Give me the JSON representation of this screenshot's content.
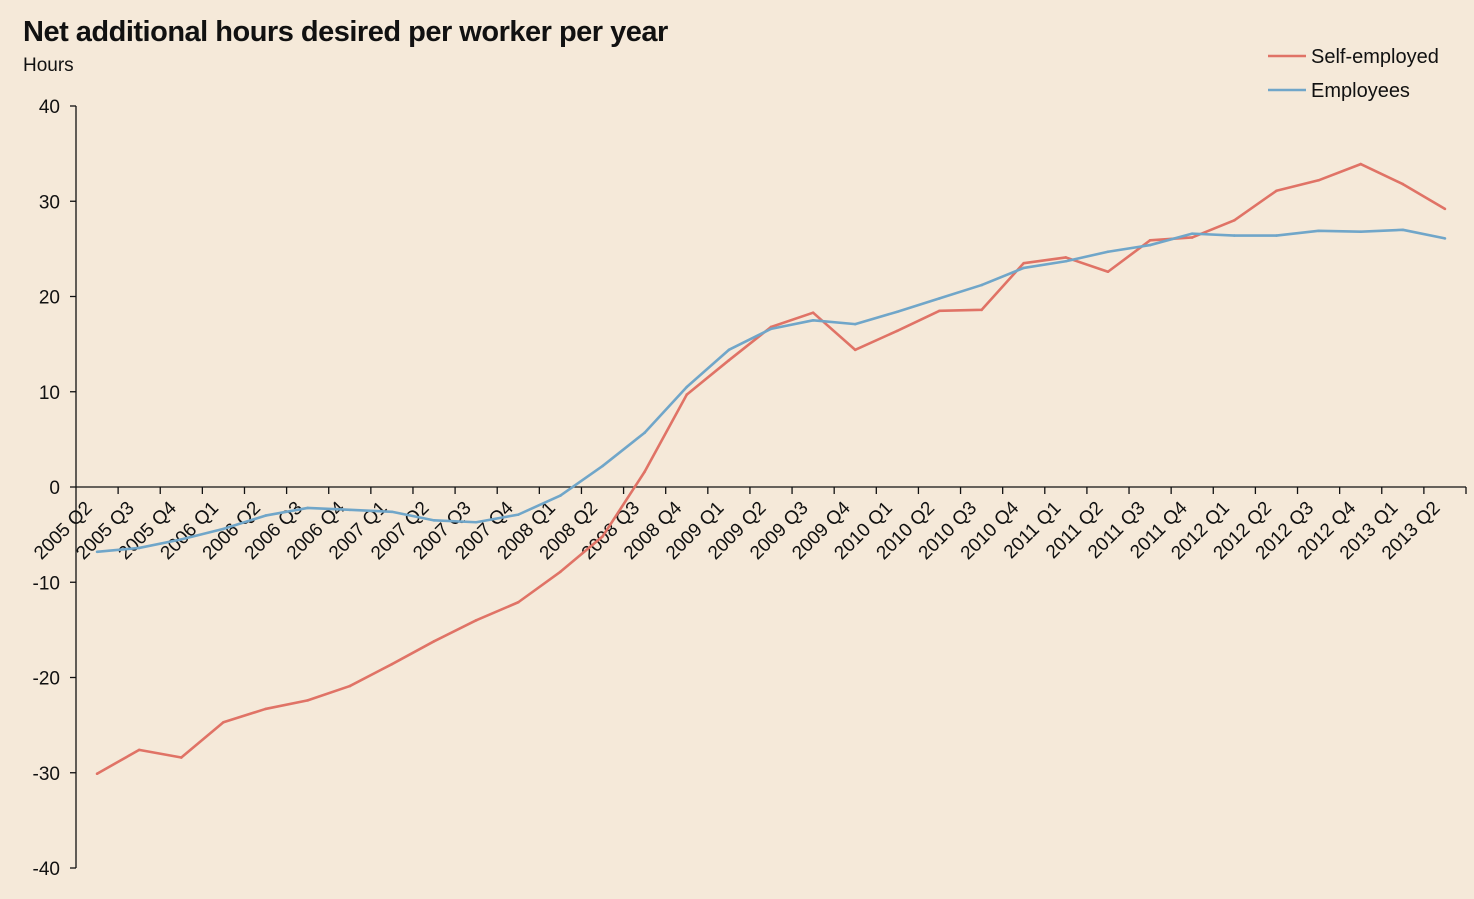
{
  "chart_data": {
    "type": "line",
    "title": "Net additional hours desired per worker per year",
    "ylabel": "Hours",
    "xlabel": "",
    "ylim": [
      -40,
      40
    ],
    "yticks": [
      40,
      30,
      20,
      10,
      0,
      -10,
      -20,
      -30,
      -40
    ],
    "grid": false,
    "legend": "top-right",
    "categories": [
      "2005 Q2",
      "2005 Q3",
      "2005 Q4",
      "2006 Q1",
      "2006 Q2",
      "2006 Q3",
      "2006 Q4",
      "2007 Q1",
      "2007 Q2",
      "2007 Q3",
      "2007 Q4",
      "2008 Q1",
      "2008 Q2",
      "2008 Q3",
      "2008 Q4",
      "2009 Q1",
      "2009 Q2",
      "2009 Q3",
      "2009 Q4",
      "2010 Q1",
      "2010 Q2",
      "2010 Q3",
      "2010 Q4",
      "2011 Q1",
      "2011 Q2",
      "2011 Q3",
      "2011 Q4",
      "2012 Q1",
      "2012 Q2",
      "2012 Q3",
      "2012 Q4",
      "2013 Q1",
      "2013 Q2"
    ],
    "series": [
      {
        "name": "Self-employed",
        "color": "#e07366",
        "values": [
          -30.1,
          -27.6,
          -28.4,
          -24.7,
          -23.3,
          -22.4,
          -20.9,
          -18.6,
          -16.2,
          -14.0,
          -12.1,
          -8.9,
          -5.2,
          1.6,
          9.7,
          13.3,
          16.8,
          18.3,
          14.4,
          16.4,
          18.5,
          18.6,
          23.5,
          24.1,
          22.6,
          25.9,
          26.2,
          28.0,
          31.1,
          32.2,
          33.9,
          31.8,
          29.2
        ]
      },
      {
        "name": "Employees",
        "color": "#70a6c9",
        "values": [
          -6.8,
          -6.4,
          -5.5,
          -4.4,
          -3.0,
          -2.2,
          -2.4,
          -2.6,
          -3.5,
          -3.7,
          -2.9,
          -0.9,
          2.2,
          5.7,
          10.5,
          14.4,
          16.6,
          17.5,
          17.1,
          18.4,
          19.8,
          21.2,
          23.0,
          23.7,
          24.7,
          25.4,
          26.6,
          26.4,
          26.4,
          26.9,
          26.8,
          27.0,
          26.1
        ]
      }
    ]
  }
}
